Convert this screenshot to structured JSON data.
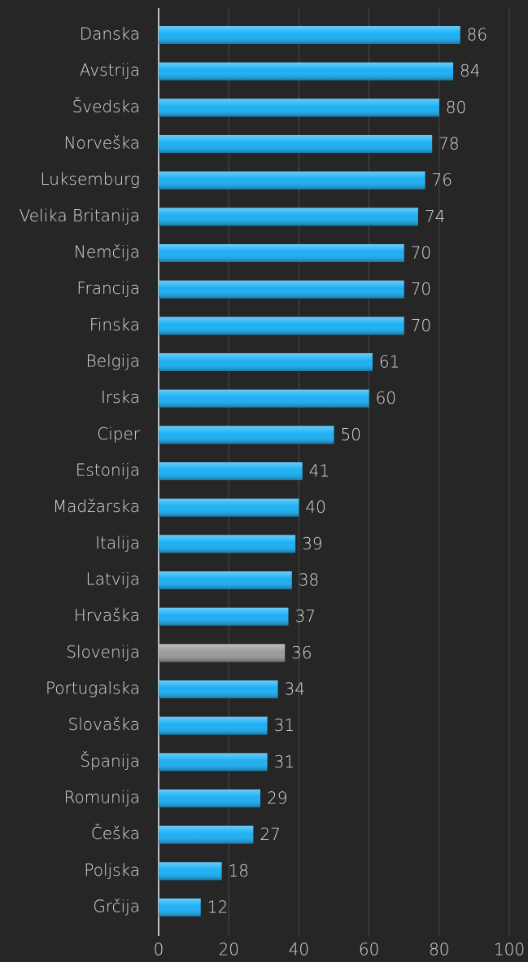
{
  "chart_data": {
    "type": "bar",
    "orientation": "horizontal",
    "categories": [
      "Danska",
      "Avstrija",
      "Švedska",
      "Norveška",
      "Luksemburg",
      "Velika Britanija",
      "Nemčija",
      "Francija",
      "Finska",
      "Belgija",
      "Irska",
      "Ciper",
      "Estonija",
      "Madžarska",
      "Italija",
      "Latvija",
      "Hrvaška",
      "Slovenija",
      "Portugalska",
      "Slovaška",
      "Španija",
      "Romunija",
      "Češka",
      "Poljska",
      "Grčija"
    ],
    "values": [
      86,
      84,
      80,
      78,
      76,
      74,
      70,
      70,
      70,
      61,
      60,
      50,
      41,
      40,
      39,
      38,
      37,
      36,
      34,
      31,
      31,
      29,
      27,
      18,
      12
    ],
    "colors": [
      "#1aaff5",
      "#1aaff5",
      "#1aaff5",
      "#1aaff5",
      "#1aaff5",
      "#1aaff5",
      "#1aaff5",
      "#1aaff5",
      "#1aaff5",
      "#1aaff5",
      "#1aaff5",
      "#1aaff5",
      "#1aaff5",
      "#1aaff5",
      "#1aaff5",
      "#1aaff5",
      "#1aaff5",
      "#9a9a9a",
      "#1aaff5",
      "#1aaff5",
      "#1aaff5",
      "#1aaff5",
      "#1aaff5",
      "#1aaff5",
      "#1aaff5"
    ],
    "xlim": [
      0,
      100
    ],
    "xticks": [
      0,
      20,
      40,
      60,
      80,
      100
    ],
    "grid": true
  }
}
